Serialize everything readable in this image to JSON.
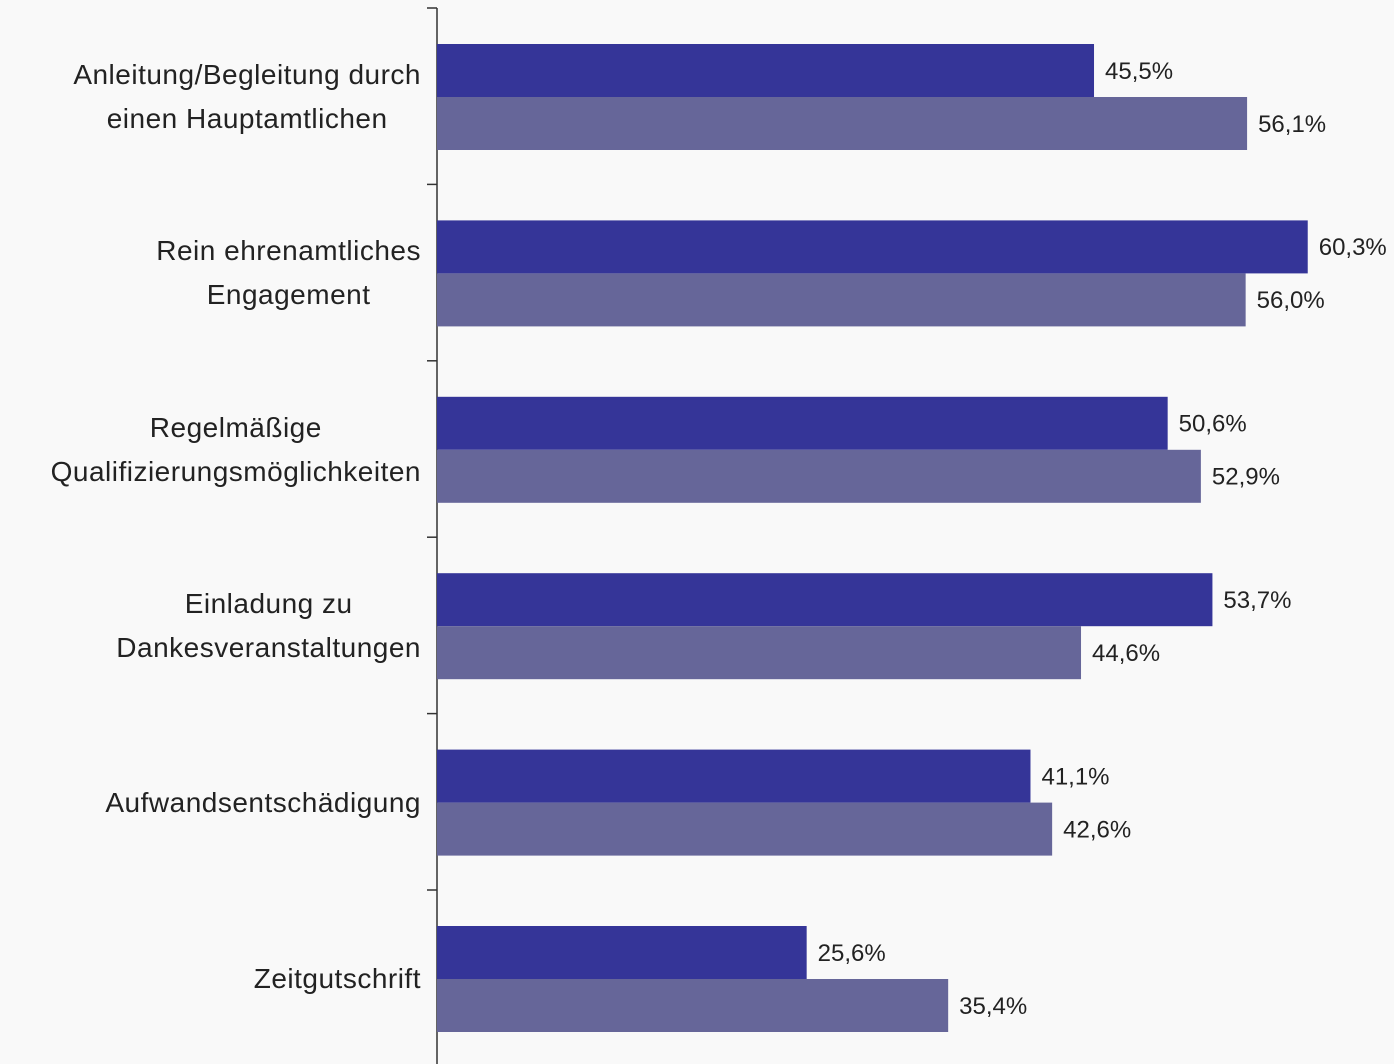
{
  "chart_data": {
    "type": "barh",
    "categories": [
      "Anleitung/Begleitung durch\neinen Hauptamtlichen",
      "Rein ehrenamtliches\nEngagement",
      "Regelmäßige\nQualifizierungsmöglichkeiten",
      "Einladung zu\nDankesveranstaltungen",
      "Aufwandsentschädigung",
      "Zeitgutschrift"
    ],
    "series": [
      {
        "color": "#353598",
        "values": [
          45.5,
          60.3,
          50.6,
          53.7,
          41.1,
          25.6
        ],
        "value_labels": [
          "45,5%",
          "60,3%",
          "50,6%",
          "53,7%",
          "41,1%",
          "25,6%"
        ]
      },
      {
        "color": "#666699",
        "values": [
          56.1,
          56.0,
          52.9,
          44.6,
          42.6,
          35.4
        ],
        "value_labels": [
          "56,1%",
          "56,0%",
          "52,9%",
          "44,6%",
          "42,6%",
          "35,4%"
        ]
      }
    ]
  }
}
